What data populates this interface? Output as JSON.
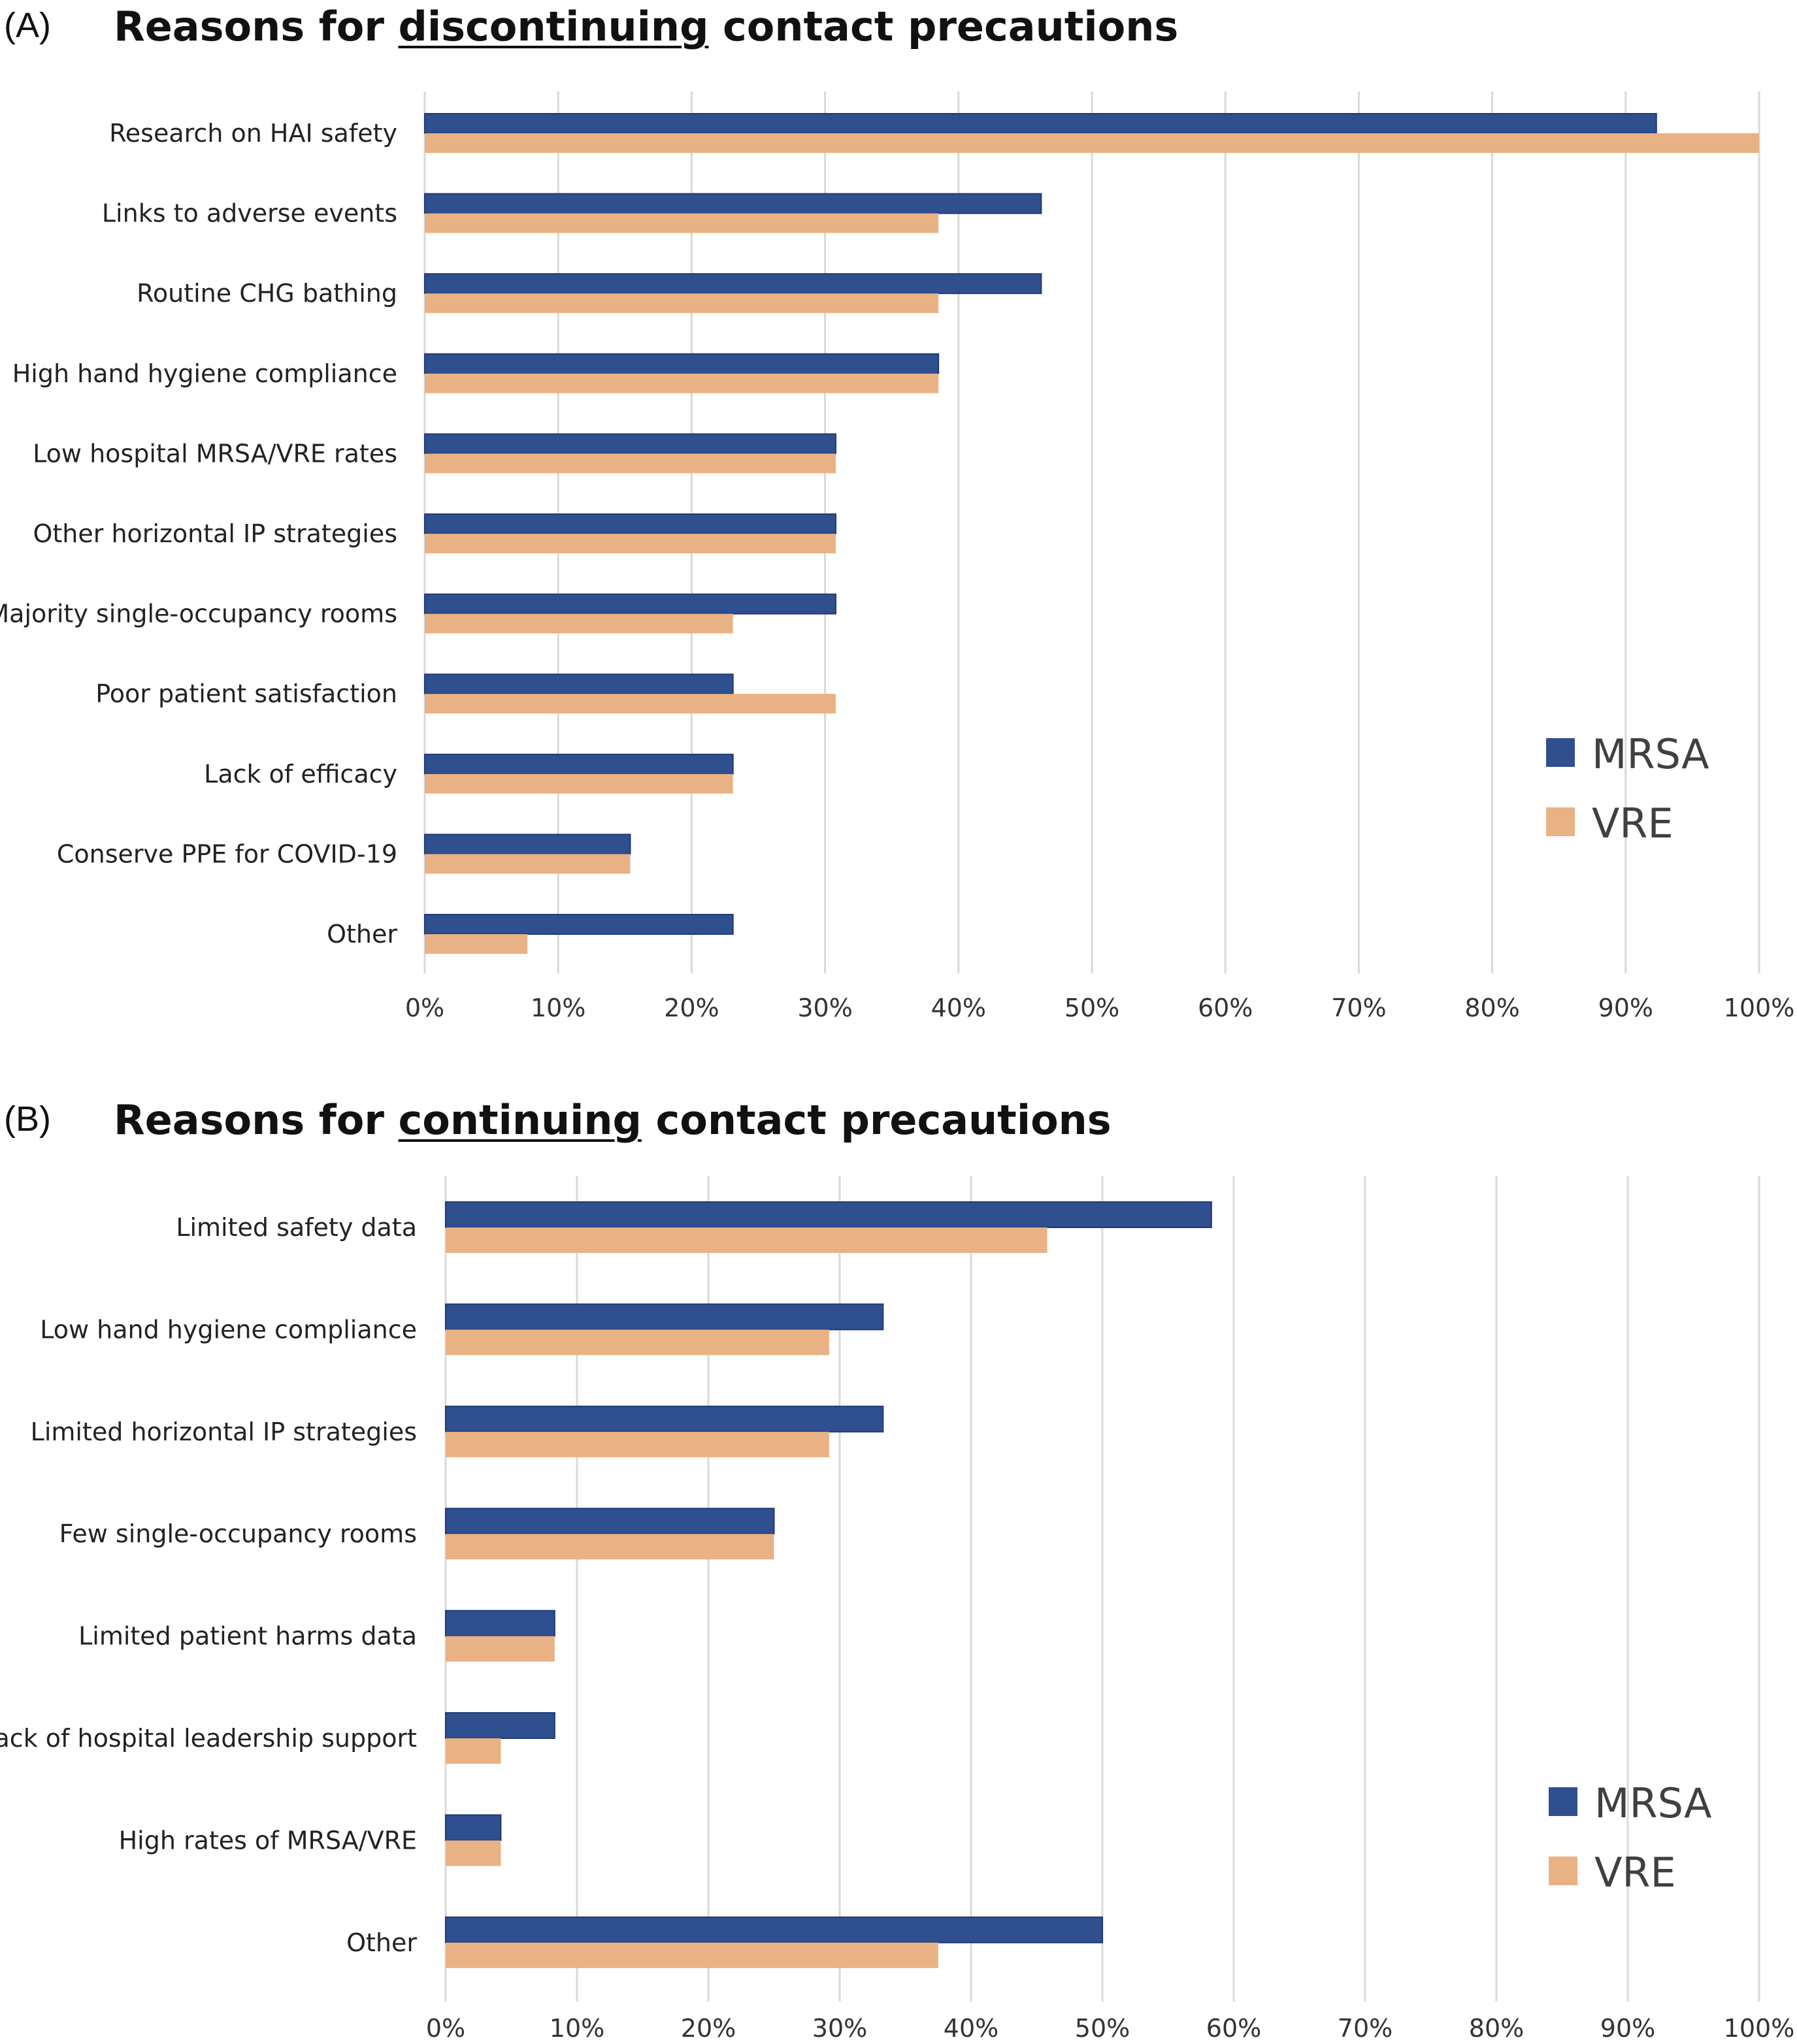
{
  "chart_data": [
    {
      "panel": "(A)",
      "type": "bar",
      "orientation": "horizontal",
      "title_parts": [
        "Reasons for ",
        "discontinuing",
        " contact precautions"
      ],
      "categories": [
        "Research on HAI safety",
        "Links to adverse events",
        "Routine CHG bathing",
        "High hand hygiene compliance",
        "Low hospital MRSA/VRE rates",
        "Other horizontal IP strategies",
        "Majority single-occupancy rooms",
        "Poor patient satisfaction",
        "Lack of efficacy",
        "Conserve PPE for COVID-19",
        "Other"
      ],
      "series": [
        {
          "name": "MRSA",
          "color": "#2F4F8F",
          "values": [
            92.3,
            46.2,
            46.2,
            38.5,
            30.8,
            30.8,
            30.8,
            23.1,
            23.1,
            15.4,
            23.1
          ]
        },
        {
          "name": "VRE",
          "color": "#E9B285",
          "values": [
            100,
            38.5,
            38.5,
            38.5,
            30.8,
            30.8,
            23.1,
            30.8,
            23.1,
            15.4,
            7.7
          ]
        }
      ],
      "xlim": [
        0,
        100
      ],
      "xticks": [
        "0%",
        "10%",
        "20%",
        "30%",
        "40%",
        "50%",
        "60%",
        "70%",
        "80%",
        "90%",
        "100%"
      ],
      "grid": "vertical",
      "legend": "right"
    },
    {
      "panel": "(B)",
      "type": "bar",
      "orientation": "horizontal",
      "title_parts": [
        "Reasons for ",
        "continuing",
        " contact precautions"
      ],
      "categories": [
        "Limited safety data",
        "Low hand hygiene compliance",
        "Limited horizontal IP strategies",
        "Few single-occupancy rooms",
        "Limited patient harms data",
        "Lack of hospital leadership support",
        "High rates of MRSA/VRE",
        "Other"
      ],
      "series": [
        {
          "name": "MRSA",
          "color": "#2F4F8F",
          "values": [
            58.3,
            33.3,
            33.3,
            25.0,
            8.3,
            8.3,
            4.2,
            50.0
          ]
        },
        {
          "name": "VRE",
          "color": "#E9B285",
          "values": [
            45.8,
            29.2,
            29.2,
            25.0,
            8.3,
            4.2,
            4.2,
            37.5
          ]
        }
      ],
      "xlim": [
        0,
        100
      ],
      "xticks": [
        "0%",
        "10%",
        "20%",
        "30%",
        "40%",
        "50%",
        "60%",
        "70%",
        "80%",
        "90%",
        "100%"
      ],
      "grid": "vertical",
      "legend": "right"
    }
  ]
}
